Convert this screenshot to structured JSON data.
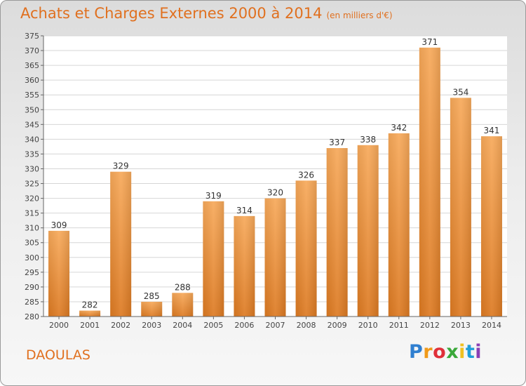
{
  "title": "Achats et Charges Externes 2000 à 2014",
  "unit": "(en milliers d'€)",
  "commune": "DAOULAS",
  "logo_text": "Proxiti",
  "colors": {
    "accent": "#e0701f",
    "bar_top": "#f7a95a",
    "bar_bottom": "#dd7a22"
  },
  "chart_data": {
    "type": "bar",
    "categories": [
      "2000",
      "2001",
      "2002",
      "2003",
      "2004",
      "2005",
      "2006",
      "2007",
      "2008",
      "2009",
      "2010",
      "2011",
      "2012",
      "2013",
      "2014"
    ],
    "values": [
      309,
      282,
      329,
      285,
      288,
      319,
      314,
      320,
      326,
      337,
      338,
      342,
      371,
      354,
      341
    ],
    "ylim": [
      280,
      375
    ],
    "yticks": [
      280,
      285,
      290,
      295,
      300,
      305,
      310,
      315,
      320,
      325,
      330,
      335,
      340,
      345,
      350,
      355,
      360,
      365,
      370,
      375
    ],
    "grid": true,
    "xlabel": "",
    "ylabel": ""
  }
}
